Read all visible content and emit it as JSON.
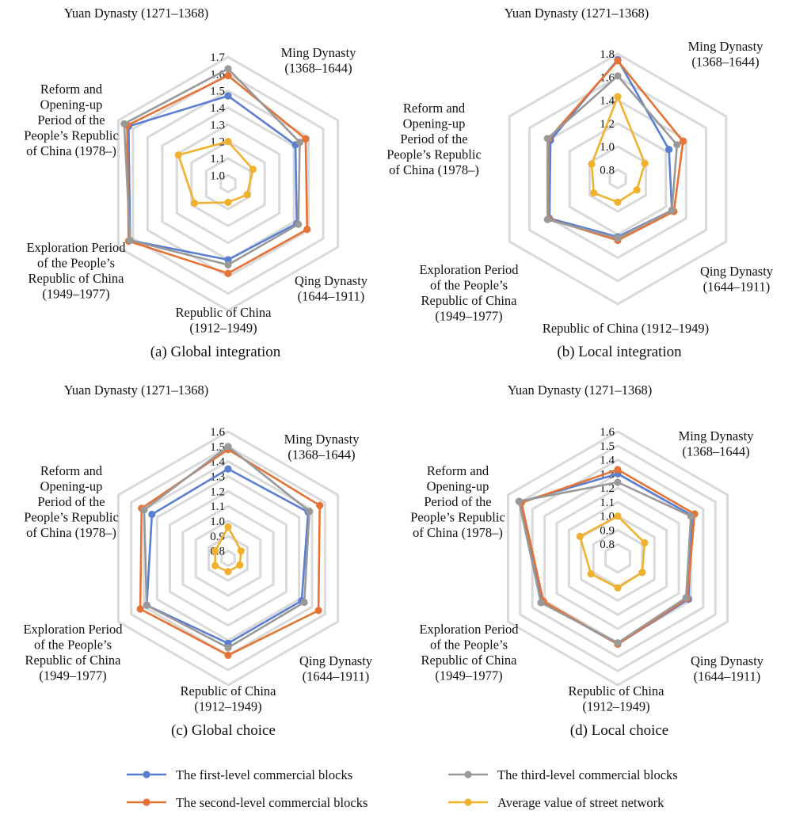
{
  "categories_note": "shared",
  "colors": {
    "first": "#5b7fd0",
    "second": "#e57336",
    "third": "#999999",
    "average": "#f0b12f",
    "grid": "#d9d9d9"
  },
  "legend": [
    {
      "key": "first",
      "label": "The first-level commercial blocks"
    },
    {
      "key": "second",
      "label": "The second-level commercial blocks"
    },
    {
      "key": "third",
      "label": "The third-level commercial blocks"
    },
    {
      "key": "average",
      "label": "Average value of street network"
    }
  ],
  "chart_data": [
    {
      "type": "radar",
      "caption": "(a) Global integration",
      "categories": [
        "Yuan Dynasty (1271–1368)",
        "Ming Dynasty\n(1368–1644)",
        "Qing Dynasty\n(1644–1911)",
        "Republic of China\n(1912–1949)",
        "Exploration Period\nof the People’s\nRepublic of China\n(1949–1977)",
        "Reform and\nOpening-up\nPeriod of the\nPeople’s Republic\nof China (1978–)"
      ],
      "ticks": [
        "1.0",
        "1.1",
        "1.2",
        "1.3",
        "1.4",
        "1.5",
        "1.6",
        "1.7"
      ],
      "rmin": 0.95,
      "rmax": 1.7,
      "series": [
        {
          "key": "first",
          "values": [
            1.47,
            1.41,
            1.42,
            1.4,
            1.62,
            1.63
          ]
        },
        {
          "key": "second",
          "values": [
            1.59,
            1.48,
            1.49,
            1.48,
            1.63,
            1.64
          ]
        },
        {
          "key": "third",
          "values": [
            1.63,
            1.44,
            1.43,
            1.43,
            1.62,
            1.66
          ]
        },
        {
          "key": "average",
          "values": [
            1.2,
            1.12,
            1.08,
            1.06,
            1.18,
            1.29
          ]
        }
      ]
    },
    {
      "type": "radar",
      "caption": "(b) Local integration",
      "categories": [
        "Yuan Dynasty (1271–1368)",
        "Ming Dynasty\n(1368–1644)",
        "Qing Dynasty\n(1644–1911)",
        "Republic of China (1912–1949)",
        "Exploration Period\nof the People’s\nRepublic of China\n(1949–1977)",
        "Reform and\nOpening-up\nPeriod of the\nPeople’s Republic\nof China (1978–)"
      ],
      "ticks": [
        "0.8",
        "1.0",
        "1.2",
        "1.4",
        "1.6",
        "1.8"
      ],
      "rmin": 0.72,
      "rmax": 1.8,
      "series": [
        {
          "key": "first",
          "values": [
            1.75,
            1.23,
            1.26,
            1.22,
            1.4,
            1.39
          ]
        },
        {
          "key": "second",
          "values": [
            1.74,
            1.37,
            1.28,
            1.25,
            1.41,
            1.41
          ]
        },
        {
          "key": "third",
          "values": [
            1.61,
            1.31,
            1.26,
            1.23,
            1.42,
            1.42
          ]
        },
        {
          "key": "average",
          "values": [
            1.43,
            0.99,
            0.91,
            0.92,
            0.96,
            0.98
          ]
        }
      ]
    },
    {
      "type": "radar",
      "caption": "(c) Global choice",
      "categories": [
        "Yuan Dynasty (1271–1368)",
        "Ming Dynasty\n(1368–1644)",
        "Qing Dynasty\n(1644–1911)",
        "Republic of China\n(1912–1949)",
        "Exploration Period\nof the People’s\nRepublic of China\n(1949–1977)",
        "Reform and\nOpening-up\nPeriod of the\nPeople’s Republic\nof China (1978–)"
      ],
      "ticks": [
        "0.8",
        "0.9",
        "1.0",
        "1.1",
        "1.2",
        "1.3",
        "1.4",
        "1.5",
        "1.6"
      ],
      "rmin": 0.75,
      "rmax": 1.6,
      "series": [
        {
          "key": "first",
          "values": [
            1.35,
            1.37,
            1.32,
            1.32,
            1.38,
            1.34
          ]
        },
        {
          "key": "second",
          "values": [
            1.48,
            1.46,
            1.45,
            1.4,
            1.43,
            1.42
          ]
        },
        {
          "key": "third",
          "values": [
            1.5,
            1.38,
            1.34,
            1.35,
            1.38,
            1.4
          ]
        },
        {
          "key": "average",
          "values": [
            0.96,
            0.85,
            0.84,
            0.84,
            0.85,
            0.85
          ]
        }
      ]
    },
    {
      "type": "radar",
      "caption": "(d) Local choice",
      "categories": [
        "Yuan Dynasty (1271–1368)",
        "Ming Dynasty\n(1368–1644)",
        "Qing Dynasty\n(1644–1911)",
        "Republic of China\n(1912–1949)",
        "Exploration Period\nof the People’s\nRepublic of China\n(1949–1977)",
        "Reform and\nOpening-up\nPeriod of the\nPeople’s Republic\nof China (1978–)"
      ],
      "ticks": [
        "0.8",
        "0.9",
        "1.0",
        "1.1",
        "1.2",
        "1.3",
        "1.4",
        "1.5",
        "1.6"
      ],
      "rmin": 0.7,
      "rmax": 1.6,
      "series": [
        {
          "key": "first",
          "values": [
            1.3,
            1.31,
            1.28,
            1.31,
            1.32,
            1.5
          ]
        },
        {
          "key": "second",
          "values": [
            1.33,
            1.33,
            1.27,
            1.31,
            1.31,
            1.49
          ]
        },
        {
          "key": "third",
          "values": [
            1.24,
            1.3,
            1.26,
            1.3,
            1.33,
            1.51
          ]
        },
        {
          "key": "average",
          "values": [
            1.0,
            0.92,
            0.9,
            0.91,
            0.92,
            1.01
          ]
        }
      ]
    }
  ]
}
